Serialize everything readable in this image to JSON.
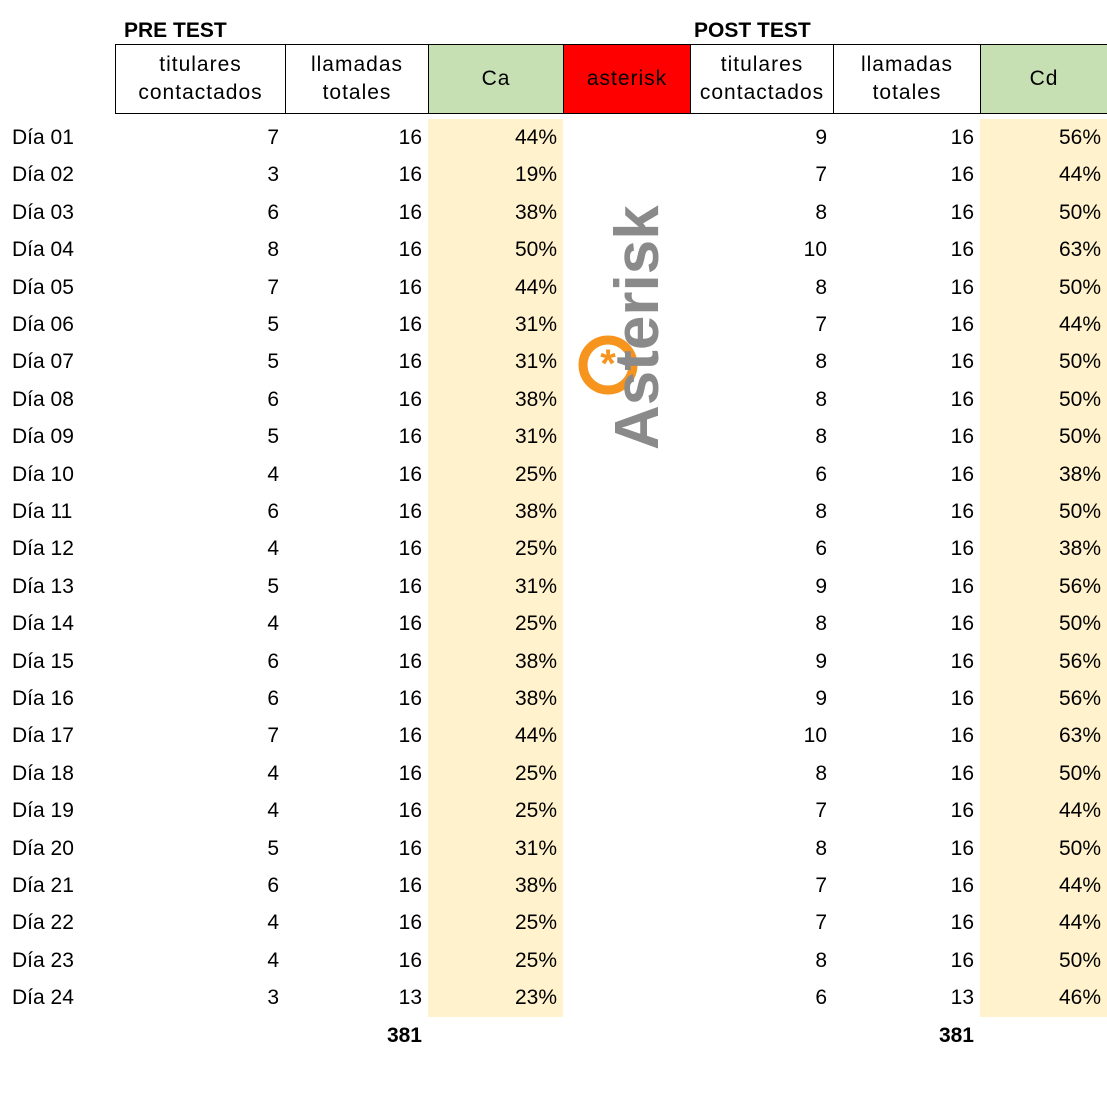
{
  "pre_title": "PRE TEST",
  "post_title": "POST TEST",
  "headers": [
    [
      "titulares",
      "contactados"
    ],
    [
      "llamadas",
      "totales"
    ],
    [
      "Ca"
    ],
    [
      "asterisk"
    ],
    [
      "titulares",
      "contactados"
    ],
    [
      "llamadas",
      "totales"
    ],
    [
      "Cd"
    ]
  ],
  "logo": "Asterisk",
  "rows": [
    [
      "Día 01",
      "7",
      "16",
      "44%",
      "9",
      "16",
      "56%"
    ],
    [
      "Día 02",
      "3",
      "16",
      "19%",
      "7",
      "16",
      "44%"
    ],
    [
      "Día 03",
      "6",
      "16",
      "38%",
      "8",
      "16",
      "50%"
    ],
    [
      "Día 04",
      "8",
      "16",
      "50%",
      "10",
      "16",
      "63%"
    ],
    [
      "Día 05",
      "7",
      "16",
      "44%",
      "8",
      "16",
      "50%"
    ],
    [
      "Día 06",
      "5",
      "16",
      "31%",
      "7",
      "16",
      "44%"
    ],
    [
      "Día 07",
      "5",
      "16",
      "31%",
      "8",
      "16",
      "50%"
    ],
    [
      "Día 08",
      "6",
      "16",
      "38%",
      "8",
      "16",
      "50%"
    ],
    [
      "Día 09",
      "5",
      "16",
      "31%",
      "8",
      "16",
      "50%"
    ],
    [
      "Día 10",
      "4",
      "16",
      "25%",
      "6",
      "16",
      "38%"
    ],
    [
      "Día 11",
      "6",
      "16",
      "38%",
      "8",
      "16",
      "50%"
    ],
    [
      "Día 12",
      "4",
      "16",
      "25%",
      "6",
      "16",
      "38%"
    ],
    [
      "Día 13",
      "5",
      "16",
      "31%",
      "9",
      "16",
      "56%"
    ],
    [
      "Día 14",
      "4",
      "16",
      "25%",
      "8",
      "16",
      "50%"
    ],
    [
      "Día 15",
      "6",
      "16",
      "38%",
      "9",
      "16",
      "56%"
    ],
    [
      "Día 16",
      "6",
      "16",
      "38%",
      "9",
      "16",
      "56%"
    ],
    [
      "Día 17",
      "7",
      "16",
      "44%",
      "10",
      "16",
      "63%"
    ],
    [
      "Día 18",
      "4",
      "16",
      "25%",
      "8",
      "16",
      "50%"
    ],
    [
      "Día 19",
      "4",
      "16",
      "25%",
      "7",
      "16",
      "44%"
    ],
    [
      "Día 20",
      "5",
      "16",
      "31%",
      "8",
      "16",
      "50%"
    ],
    [
      "Día 21",
      "6",
      "16",
      "38%",
      "7",
      "16",
      "44%"
    ],
    [
      "Día 22",
      "4",
      "16",
      "25%",
      "7",
      "16",
      "44%"
    ],
    [
      "Día 23",
      "4",
      "16",
      "25%",
      "8",
      "16",
      "50%"
    ],
    [
      "Día 24",
      "3",
      "13",
      "23%",
      "6",
      "13",
      "46%"
    ]
  ],
  "totals": [
    "381",
    "381"
  ]
}
